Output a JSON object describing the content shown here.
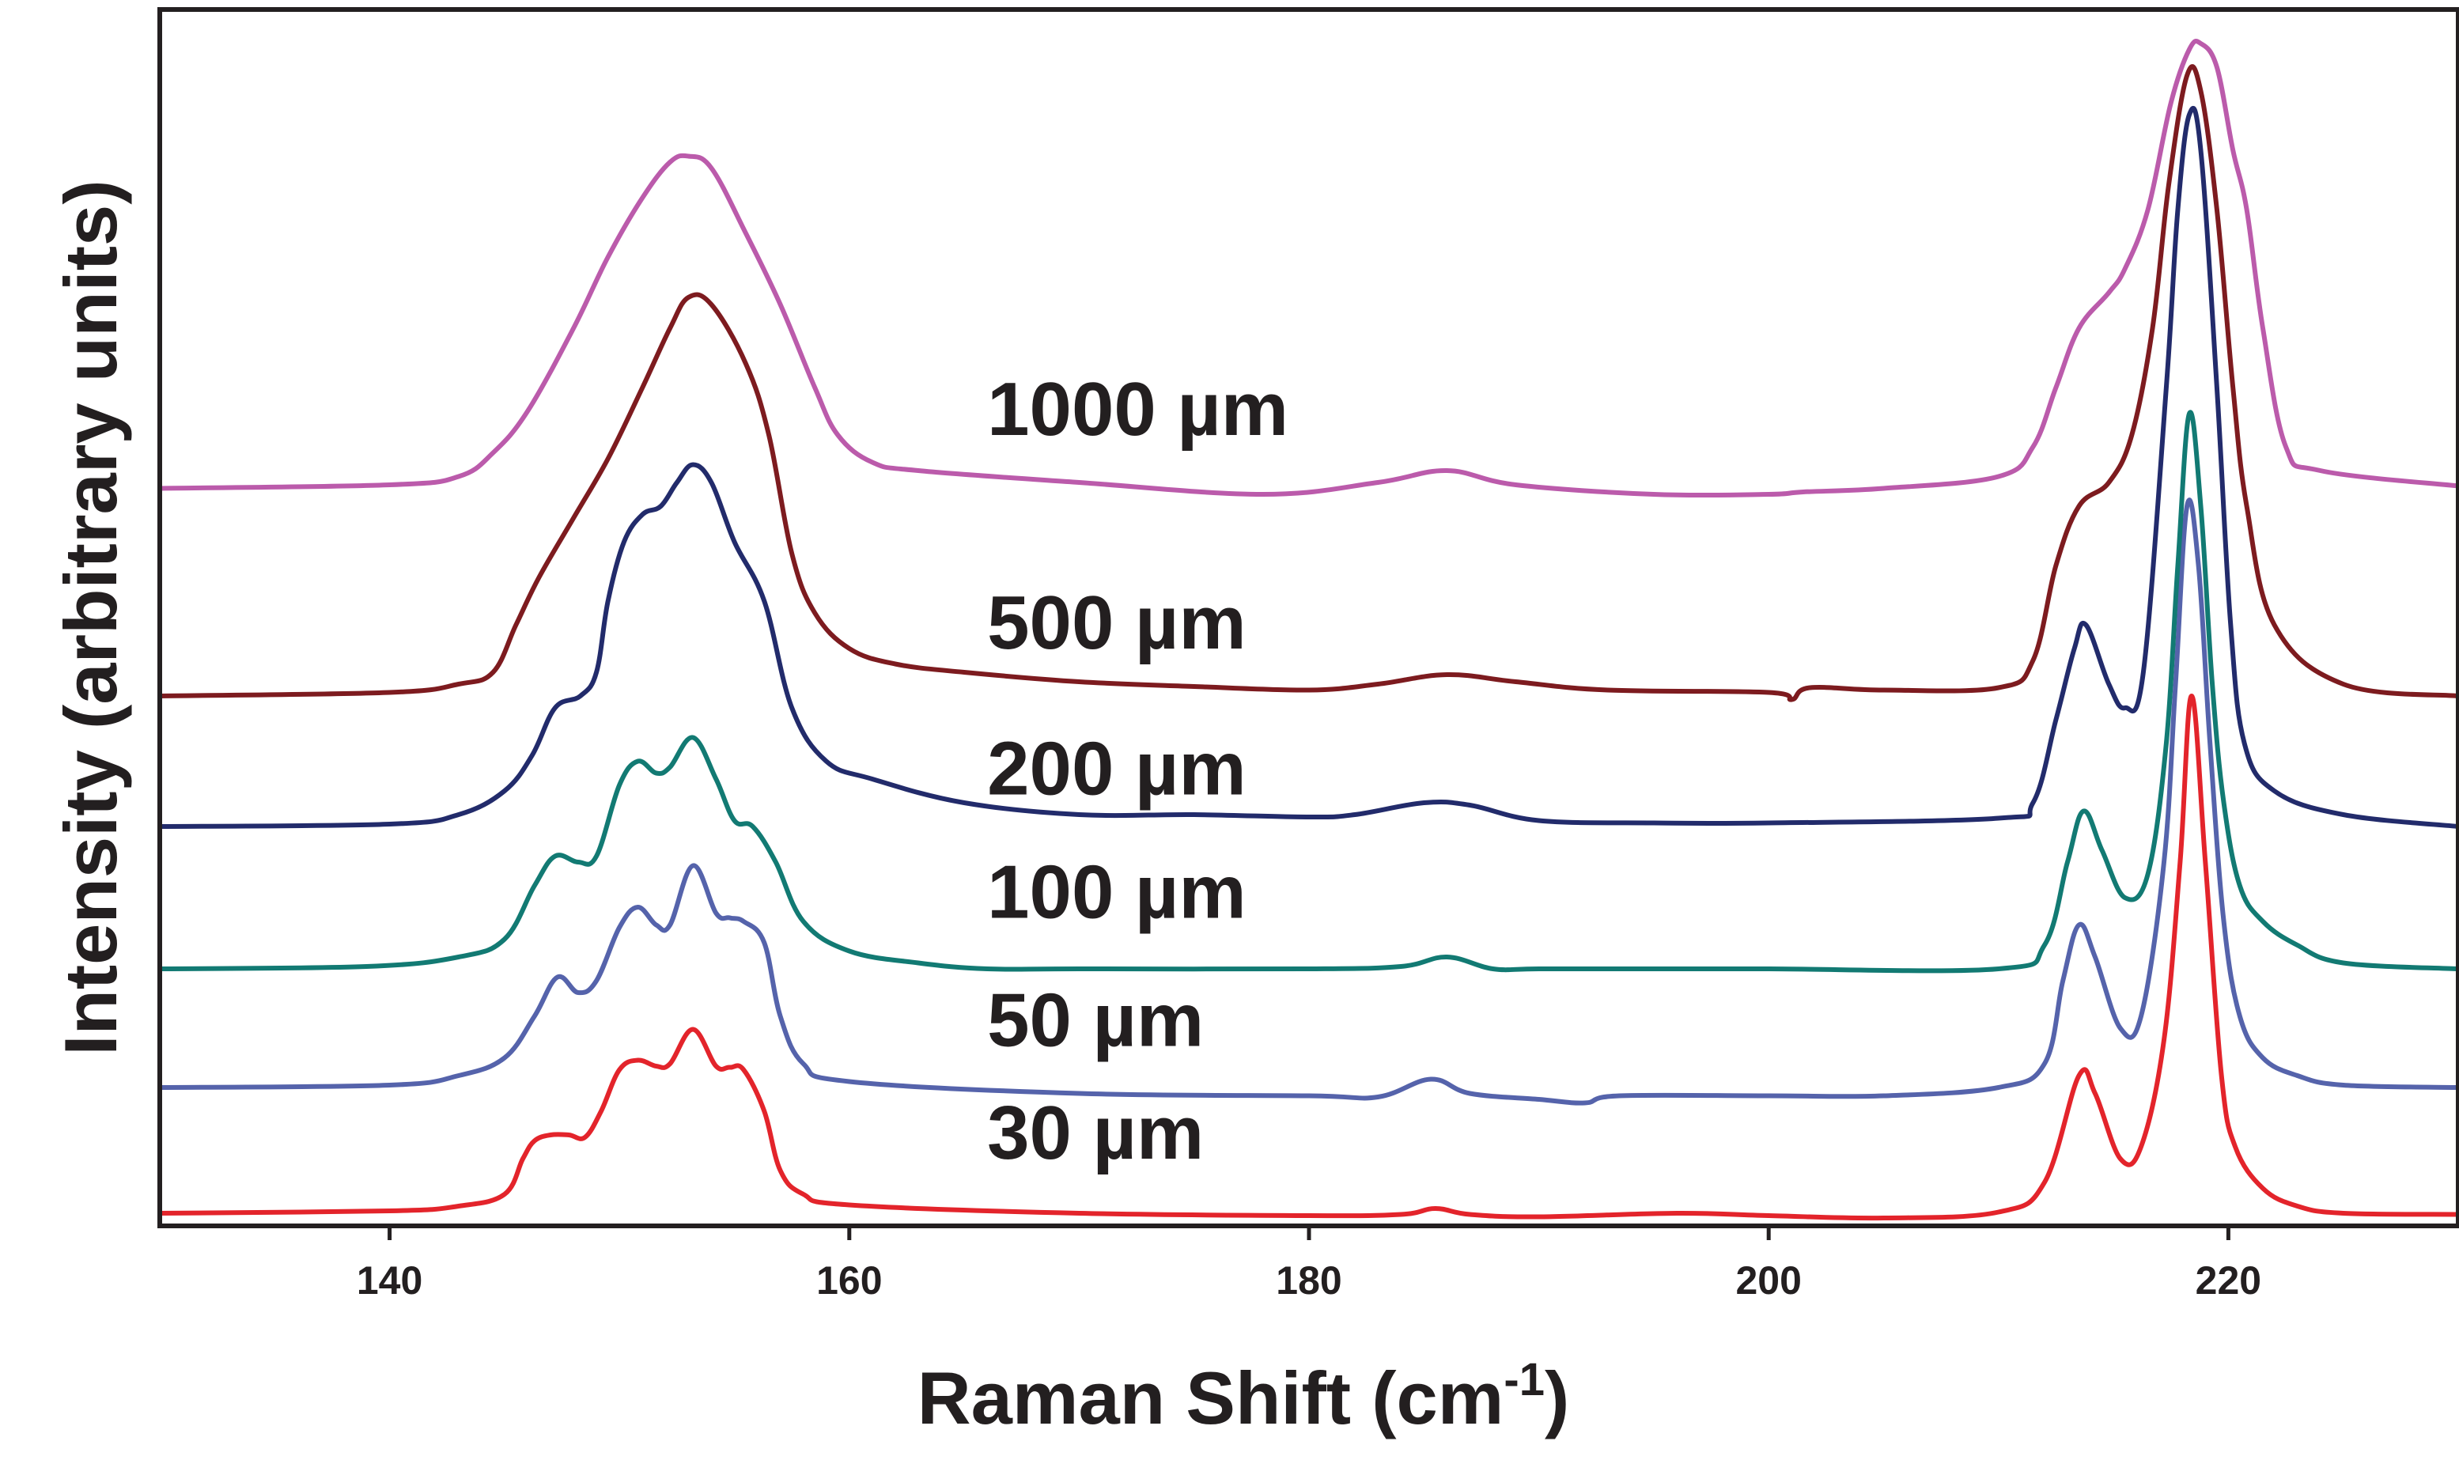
{
  "chart_data": {
    "type": "line",
    "title": "",
    "xlabel": "Raman Shift (cm",
    "xlabel_superscript": "-1",
    "xlabel_suffix": ")",
    "ylabel": "Intensity (arbitrary units)",
    "xlim": [
      130,
      230
    ],
    "ylim": [
      0,
      1
    ],
    "x_ticks": [
      140,
      160,
      180,
      200,
      220
    ],
    "x_tick_labels": [
      "140",
      "160",
      "180",
      "200",
      "220"
    ],
    "y_ticks": [],
    "grid": false,
    "legend": "inline labels",
    "series": [
      {
        "name": "30 µm",
        "color": "#e3242b",
        "points": [
          [
            130,
            0.004
          ],
          [
            140,
            0.006
          ],
          [
            143,
            0.01
          ],
          [
            145,
            0.02
          ],
          [
            145.8,
            0.05
          ],
          [
            146.3,
            0.065
          ],
          [
            147,
            0.07
          ],
          [
            147.8,
            0.07
          ],
          [
            148.5,
            0.068
          ],
          [
            149.2,
            0.09
          ],
          [
            150,
            0.125
          ],
          [
            150.8,
            0.133
          ],
          [
            151.6,
            0.128
          ],
          [
            152.2,
            0.13
          ],
          [
            153.2,
            0.159
          ],
          [
            154.2,
            0.128
          ],
          [
            154.8,
            0.127
          ],
          [
            155.4,
            0.125
          ],
          [
            156.3,
            0.09
          ],
          [
            157,
            0.04
          ],
          [
            158,
            0.02
          ],
          [
            160,
            0.011
          ],
          [
            170,
            0.004
          ],
          [
            180,
            0.002
          ],
          [
            184,
            0.003
          ],
          [
            185.5,
            0.008
          ],
          [
            187,
            0.003
          ],
          [
            190,
            0.001
          ],
          [
            196,
            0.004
          ],
          [
            200,
            0.002
          ],
          [
            205,
            0.0
          ],
          [
            210,
            0.005
          ],
          [
            212,
            0.03
          ],
          [
            213.5,
            0.12
          ],
          [
            214.2,
            0.105
          ],
          [
            215.3,
            0.05
          ],
          [
            216.2,
            0.06
          ],
          [
            217.2,
            0.15
          ],
          [
            217.9,
            0.3
          ],
          [
            218.4,
            0.44
          ],
          [
            219,
            0.3
          ],
          [
            219.7,
            0.12
          ],
          [
            220.3,
            0.06
          ],
          [
            221.5,
            0.025
          ],
          [
            223,
            0.01
          ],
          [
            225,
            0.004
          ],
          [
            230,
            0.003
          ]
        ]
      },
      {
        "name": "50 µm",
        "color": "#5563ab",
        "points": [
          [
            130,
            0.11
          ],
          [
            140,
            0.112
          ],
          [
            143,
            0.12
          ],
          [
            145,
            0.135
          ],
          [
            146.3,
            0.17
          ],
          [
            147.3,
            0.203
          ],
          [
            148.2,
            0.19
          ],
          [
            149,
            0.2
          ],
          [
            150,
            0.245
          ],
          [
            150.8,
            0.262
          ],
          [
            151.6,
            0.247
          ],
          [
            152.2,
            0.247
          ],
          [
            153.2,
            0.297
          ],
          [
            154.2,
            0.257
          ],
          [
            154.8,
            0.253
          ],
          [
            155.4,
            0.25
          ],
          [
            156.3,
            0.232
          ],
          [
            157,
            0.17
          ],
          [
            158,
            0.13
          ],
          [
            160,
            0.115
          ],
          [
            170,
            0.105
          ],
          [
            180,
            0.103
          ],
          [
            183,
            0.102
          ],
          [
            185.3,
            0.117
          ],
          [
            187,
            0.105
          ],
          [
            190,
            0.1
          ],
          [
            192,
            0.097
          ],
          [
            193.5,
            0.103
          ],
          [
            200,
            0.103
          ],
          [
            205,
            0.103
          ],
          [
            210,
            0.11
          ],
          [
            212,
            0.13
          ],
          [
            212.8,
            0.2
          ],
          [
            213.5,
            0.247
          ],
          [
            214.2,
            0.22
          ],
          [
            215.3,
            0.16
          ],
          [
            216.2,
            0.17
          ],
          [
            217.2,
            0.3
          ],
          [
            217.7,
            0.45
          ],
          [
            218.2,
            0.6
          ],
          [
            218.7,
            0.55
          ],
          [
            219.2,
            0.4
          ],
          [
            219.8,
            0.25
          ],
          [
            220.5,
            0.17
          ],
          [
            221.5,
            0.135
          ],
          [
            223,
            0.12
          ],
          [
            225,
            0.112
          ],
          [
            230,
            0.11
          ]
        ]
      },
      {
        "name": "100 µm",
        "color": "#127a73",
        "points": [
          [
            130,
            0.21
          ],
          [
            139,
            0.212
          ],
          [
            143,
            0.22
          ],
          [
            145,
            0.235
          ],
          [
            146.3,
            0.28
          ],
          [
            147.2,
            0.305
          ],
          [
            148.2,
            0.3
          ],
          [
            149,
            0.305
          ],
          [
            150,
            0.365
          ],
          [
            150.8,
            0.385
          ],
          [
            151.6,
            0.375
          ],
          [
            152.2,
            0.38
          ],
          [
            153.2,
            0.405
          ],
          [
            154.2,
            0.37
          ],
          [
            155,
            0.335
          ],
          [
            155.8,
            0.33
          ],
          [
            156.8,
            0.3
          ],
          [
            158,
            0.25
          ],
          [
            160,
            0.225
          ],
          [
            163,
            0.215
          ],
          [
            166,
            0.21
          ],
          [
            170,
            0.21
          ],
          [
            180,
            0.21
          ],
          [
            184,
            0.212
          ],
          [
            186,
            0.22
          ],
          [
            188,
            0.21
          ],
          [
            190,
            0.21
          ],
          [
            195,
            0.21
          ],
          [
            200,
            0.21
          ],
          [
            210,
            0.21
          ],
          [
            212,
            0.23
          ],
          [
            213,
            0.3
          ],
          [
            213.7,
            0.343
          ],
          [
            214.5,
            0.31
          ],
          [
            215.5,
            0.27
          ],
          [
            216.5,
            0.29
          ],
          [
            217.3,
            0.4
          ],
          [
            217.8,
            0.55
          ],
          [
            218.3,
            0.678
          ],
          [
            218.8,
            0.6
          ],
          [
            219.3,
            0.45
          ],
          [
            219.8,
            0.35
          ],
          [
            220.5,
            0.28
          ],
          [
            221.5,
            0.25
          ],
          [
            223,
            0.23
          ],
          [
            225,
            0.215
          ],
          [
            230,
            0.21
          ]
        ]
      },
      {
        "name": "200 µm",
        "color": "#222b6b",
        "points": [
          [
            130,
            0.33
          ],
          [
            140,
            0.332
          ],
          [
            143,
            0.34
          ],
          [
            145,
            0.36
          ],
          [
            146.2,
            0.39
          ],
          [
            147.2,
            0.43
          ],
          [
            148.3,
            0.44
          ],
          [
            149,
            0.46
          ],
          [
            149.5,
            0.52
          ],
          [
            150.2,
            0.57
          ],
          [
            151,
            0.593
          ],
          [
            151.8,
            0.6
          ],
          [
            152.5,
            0.62
          ],
          [
            153.2,
            0.635
          ],
          [
            154,
            0.62
          ],
          [
            155,
            0.57
          ],
          [
            156.3,
            0.52
          ],
          [
            157.5,
            0.43
          ],
          [
            159,
            0.385
          ],
          [
            161,
            0.37
          ],
          [
            165,
            0.35
          ],
          [
            170,
            0.34
          ],
          [
            175,
            0.34
          ],
          [
            180,
            0.338
          ],
          [
            182,
            0.34
          ],
          [
            185,
            0.35
          ],
          [
            187,
            0.348
          ],
          [
            190,
            0.335
          ],
          [
            195,
            0.333
          ],
          [
            200,
            0.333
          ],
          [
            210,
            0.337
          ],
          [
            211.5,
            0.35
          ],
          [
            212.5,
            0.42
          ],
          [
            213.3,
            0.48
          ],
          [
            213.8,
            0.5
          ],
          [
            214.8,
            0.45
          ],
          [
            215.5,
            0.43
          ],
          [
            216.3,
            0.46
          ],
          [
            217.3,
            0.7
          ],
          [
            217.8,
            0.85
          ],
          [
            218.3,
            0.93
          ],
          [
            218.8,
            0.9
          ],
          [
            219.5,
            0.7
          ],
          [
            220.1,
            0.5
          ],
          [
            220.7,
            0.4
          ],
          [
            222,
            0.36
          ],
          [
            225,
            0.34
          ],
          [
            230,
            0.33
          ]
        ]
      },
      {
        "name": "500 µm",
        "color": "#7d1b1f",
        "points": [
          [
            130,
            0.44
          ],
          [
            140,
            0.443
          ],
          [
            143,
            0.45
          ],
          [
            144.5,
            0.46
          ],
          [
            145.5,
            0.5
          ],
          [
            146.5,
            0.54
          ],
          [
            148,
            0.59
          ],
          [
            149.5,
            0.64
          ],
          [
            151,
            0.7
          ],
          [
            152.2,
            0.75
          ],
          [
            153,
            0.776
          ],
          [
            154,
            0.77
          ],
          [
            155.5,
            0.72
          ],
          [
            156.5,
            0.66
          ],
          [
            157.5,
            0.56
          ],
          [
            158.5,
            0.51
          ],
          [
            160,
            0.48
          ],
          [
            162,
            0.467
          ],
          [
            165,
            0.46
          ],
          [
            170,
            0.452
          ],
          [
            175,
            0.448
          ],
          [
            180,
            0.445
          ],
          [
            183,
            0.45
          ],
          [
            186,
            0.458
          ],
          [
            189,
            0.452
          ],
          [
            193,
            0.445
          ],
          [
            200,
            0.443
          ],
          [
            201,
            0.437
          ],
          [
            201.8,
            0.447
          ],
          [
            205,
            0.445
          ],
          [
            210,
            0.447
          ],
          [
            211.5,
            0.47
          ],
          [
            212.5,
            0.55
          ],
          [
            213.5,
            0.6
          ],
          [
            214.8,
            0.62
          ],
          [
            215.8,
            0.66
          ],
          [
            216.7,
            0.75
          ],
          [
            217.4,
            0.87
          ],
          [
            218.2,
            0.963
          ],
          [
            218.8,
            0.95
          ],
          [
            219.5,
            0.85
          ],
          [
            220.2,
            0.7
          ],
          [
            220.8,
            0.6
          ],
          [
            222,
            0.5
          ],
          [
            225,
            0.45
          ],
          [
            230,
            0.44
          ]
        ]
      },
      {
        "name": "1000 µm",
        "color": "#bb5bab",
        "points": [
          [
            130,
            0.615
          ],
          [
            140,
            0.618
          ],
          [
            143,
            0.625
          ],
          [
            144.5,
            0.645
          ],
          [
            146,
            0.68
          ],
          [
            148,
            0.75
          ],
          [
            149.5,
            0.81
          ],
          [
            151,
            0.86
          ],
          [
            152.2,
            0.89
          ],
          [
            153,
            0.895
          ],
          [
            154,
            0.885
          ],
          [
            155.5,
            0.83
          ],
          [
            157,
            0.77
          ],
          [
            158.5,
            0.7
          ],
          [
            159.5,
            0.66
          ],
          [
            161,
            0.637
          ],
          [
            163,
            0.63
          ],
          [
            170,
            0.62
          ],
          [
            178,
            0.61
          ],
          [
            183,
            0.62
          ],
          [
            186,
            0.63
          ],
          [
            189,
            0.618
          ],
          [
            195,
            0.61
          ],
          [
            200,
            0.61
          ],
          [
            201.5,
            0.612
          ],
          [
            205,
            0.615
          ],
          [
            210,
            0.625
          ],
          [
            211.5,
            0.65
          ],
          [
            212.5,
            0.7
          ],
          [
            213.5,
            0.75
          ],
          [
            214.8,
            0.78
          ],
          [
            215.5,
            0.8
          ],
          [
            216.5,
            0.85
          ],
          [
            217.5,
            0.94
          ],
          [
            218.3,
            0.985
          ],
          [
            218.8,
            0.99
          ],
          [
            219.5,
            0.97
          ],
          [
            220.2,
            0.9
          ],
          [
            220.8,
            0.85
          ],
          [
            221.5,
            0.75
          ],
          [
            222.5,
            0.65
          ],
          [
            224,
            0.63
          ],
          [
            230,
            0.617
          ]
        ]
      }
    ],
    "annotations": [
      {
        "text": "1000 µm",
        "x": 166,
        "y": 0.66
      },
      {
        "text": "500 µm",
        "x": 166,
        "y": 0.48
      },
      {
        "text": "200 µm",
        "x": 166,
        "y": 0.357
      },
      {
        "text": "100 µm",
        "x": 166,
        "y": 0.253
      },
      {
        "text": "50 µm",
        "x": 166,
        "y": 0.145
      },
      {
        "text": "30 µm",
        "x": 166,
        "y": 0.05
      }
    ]
  }
}
